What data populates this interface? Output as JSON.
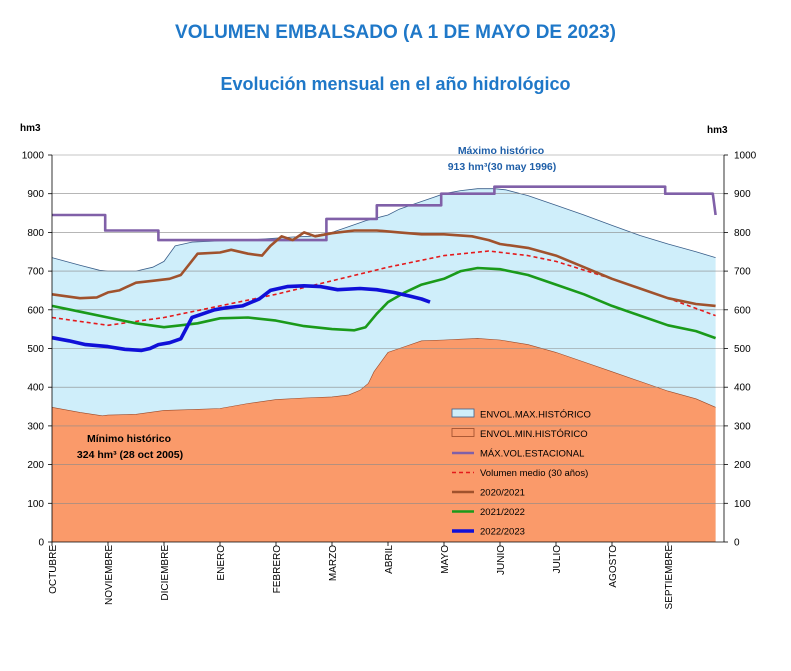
{
  "title": "VOLUMEN EMBALSADO (A 1 DE MAYO DE 2023)",
  "subtitle": "Evolución mensual en el año hidrológico",
  "chart_data": {
    "type": "area",
    "ylabel_left": "hm3",
    "ylabel_right": "hm3",
    "ylim": [
      0,
      1000
    ],
    "yticks": [
      0,
      100,
      200,
      300,
      400,
      500,
      600,
      700,
      800,
      900,
      1000
    ],
    "categories": [
      "OCTUBRE",
      "NOVIEMBRE",
      "DICIEMBRE",
      "ENERO",
      "FEBRERO",
      "MARZO",
      "ABRIL",
      "MAYO",
      "JUNIO",
      "JULIO",
      "AGOSTO",
      "SEPTIEMBRE"
    ],
    "x_max": 12,
    "grid": "horizontal",
    "legend_position": "lower-right",
    "annotations": {
      "max_line1": "Máximo histórico",
      "max_line2": "913 hm³(30 may 1996)",
      "min_line1": "Mínimo histórico",
      "min_line2": "324 hm³ (28 oct 2005)"
    },
    "series": [
      {
        "name": "ENVOL.MAX.HISTÓRICO",
        "kind": "area",
        "color": "#cfeefa",
        "edge": "#3b5f8a",
        "x": [
          0,
          0.5,
          0.85,
          1.0,
          1.5,
          1.8,
          2.0,
          2.2,
          2.5,
          3.0,
          3.5,
          4.0,
          4.3,
          4.6,
          5.0,
          5.3,
          5.6,
          6.0,
          6.2,
          6.5,
          6.8,
          7.0,
          7.3,
          7.6,
          7.9,
          8.1,
          8.5,
          9.0,
          9.5,
          10.0,
          10.5,
          11.0,
          11.5,
          11.85
        ],
        "y": [
          735,
          715,
          702,
          700,
          700,
          710,
          725,
          765,
          775,
          778,
          780,
          785,
          788,
          790,
          800,
          815,
          830,
          845,
          860,
          875,
          890,
          900,
          908,
          913,
          913,
          910,
          895,
          870,
          845,
          818,
          792,
          770,
          750,
          735
        ]
      },
      {
        "name": "ENVOL.MIN.HISTÓRICO",
        "kind": "area",
        "color": "#fa9a6a",
        "edge": "#9a4a2a",
        "x": [
          0,
          0.5,
          0.9,
          1.0,
          1.5,
          2.0,
          2.5,
          3.0,
          3.5,
          4.0,
          4.5,
          5.0,
          5.3,
          5.5,
          5.65,
          5.75,
          6.0,
          6.3,
          6.6,
          7.0,
          7.3,
          7.6,
          8.0,
          8.5,
          9.0,
          9.5,
          10.0,
          10.5,
          11.0,
          11.5,
          11.85
        ],
        "y": [
          348,
          335,
          326,
          328,
          330,
          340,
          342,
          345,
          358,
          368,
          372,
          375,
          380,
          392,
          410,
          440,
          490,
          505,
          520,
          522,
          524,
          526,
          522,
          510,
          490,
          465,
          440,
          415,
          390,
          370,
          348
        ]
      },
      {
        "name": "MÁX.VOL.ESTACIONAL",
        "kind": "step",
        "color": "#8060a8",
        "x": [
          0,
          0.95,
          0.95,
          1.9,
          1.9,
          4.9,
          4.9,
          5.8,
          5.8,
          6.4,
          6.4,
          6.95,
          6.95,
          7.9,
          7.9,
          10.95,
          10.95,
          11.8,
          11.85
        ],
        "y": [
          845,
          845,
          805,
          805,
          780,
          780,
          835,
          835,
          870,
          870,
          870,
          870,
          900,
          900,
          918,
          918,
          900,
          900,
          845
        ]
      },
      {
        "name": "Volumen medio (30 años)",
        "kind": "dashed",
        "color": "#e41a1c",
        "x": [
          0,
          1.0,
          2.0,
          3.0,
          4.0,
          5.0,
          6.0,
          7.0,
          7.8,
          8.5,
          9.0,
          10.0,
          11.0,
          11.85
        ],
        "y": [
          580,
          560,
          580,
          610,
          640,
          675,
          710,
          740,
          752,
          740,
          725,
          680,
          630,
          585
        ]
      },
      {
        "name": "2020/2021",
        "kind": "line",
        "color": "#a0522d",
        "x": [
          0,
          0.5,
          0.8,
          1.0,
          1.2,
          1.5,
          1.8,
          2.1,
          2.3,
          2.6,
          3.0,
          3.2,
          3.5,
          3.75,
          3.9,
          4.1,
          4.3,
          4.5,
          4.7,
          5.0,
          5.4,
          5.8,
          6.2,
          6.6,
          7.0,
          7.5,
          7.8,
          8.0,
          8.5,
          9.0,
          9.5,
          10.0,
          10.5,
          11.0,
          11.5,
          11.85
        ],
        "y": [
          640,
          630,
          632,
          645,
          650,
          670,
          675,
          680,
          690,
          745,
          748,
          755,
          745,
          740,
          765,
          790,
          780,
          800,
          790,
          798,
          805,
          805,
          800,
          795,
          795,
          790,
          780,
          770,
          760,
          740,
          710,
          680,
          655,
          630,
          615,
          610
        ]
      },
      {
        "name": "2021/2022",
        "kind": "line",
        "color": "#1a9a1a",
        "x": [
          0,
          0.5,
          1.0,
          1.5,
          2.0,
          2.3,
          2.6,
          3.0,
          3.5,
          4.0,
          4.5,
          5.0,
          5.4,
          5.6,
          5.8,
          6.0,
          6.3,
          6.6,
          7.0,
          7.3,
          7.6,
          8.0,
          8.5,
          9.0,
          9.5,
          10.0,
          10.5,
          11.0,
          11.5,
          11.85
        ],
        "y": [
          610,
          595,
          580,
          565,
          555,
          560,
          565,
          578,
          580,
          572,
          558,
          550,
          547,
          555,
          590,
          620,
          645,
          665,
          680,
          700,
          708,
          705,
          690,
          665,
          640,
          610,
          585,
          560,
          545,
          527
        ]
      },
      {
        "name": "2022/2023",
        "kind": "line",
        "color": "#1010d8",
        "x": [
          0,
          0.3,
          0.6,
          1.0,
          1.3,
          1.6,
          1.75,
          1.9,
          2.1,
          2.3,
          2.5,
          2.7,
          2.9,
          3.1,
          3.4,
          3.7,
          3.9,
          4.2,
          4.5,
          4.8,
          5.1,
          5.5,
          5.8,
          6.1,
          6.4,
          6.6,
          6.75
        ],
        "y": [
          528,
          520,
          510,
          505,
          498,
          495,
          500,
          510,
          515,
          525,
          580,
          590,
          600,
          605,
          610,
          628,
          650,
          660,
          662,
          660,
          652,
          655,
          652,
          645,
          635,
          628,
          620
        ]
      }
    ]
  }
}
